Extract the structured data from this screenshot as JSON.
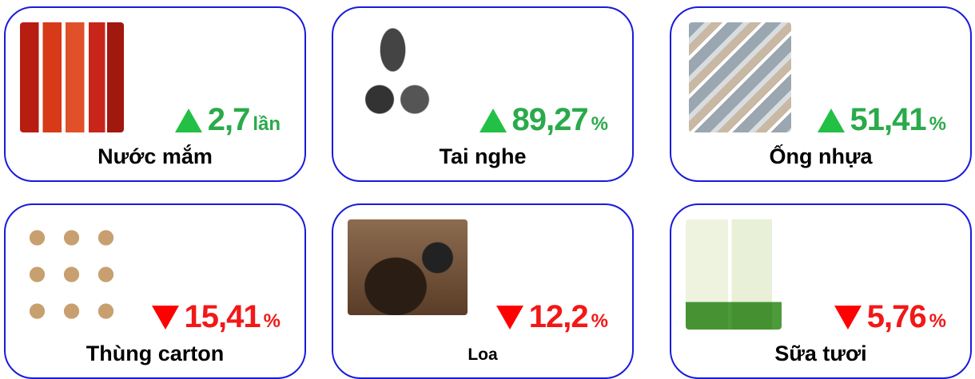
{
  "cards": [
    {
      "name": "Nước mắm",
      "value": "2,7",
      "unit": "lần",
      "direction": "up"
    },
    {
      "name": "Tai nghe",
      "value": "89,27",
      "unit": "%",
      "direction": "up"
    },
    {
      "name": "Ống nhựa",
      "value": "51,41",
      "unit": "%",
      "direction": "up"
    },
    {
      "name": "Thùng carton",
      "value": "15,41",
      "unit": "%",
      "direction": "down"
    },
    {
      "name": "Loa",
      "value": "12,2",
      "unit": "%",
      "direction": "down"
    },
    {
      "name": "Sữa tươi",
      "value": "5,76",
      "unit": "%",
      "direction": "down"
    }
  ]
}
